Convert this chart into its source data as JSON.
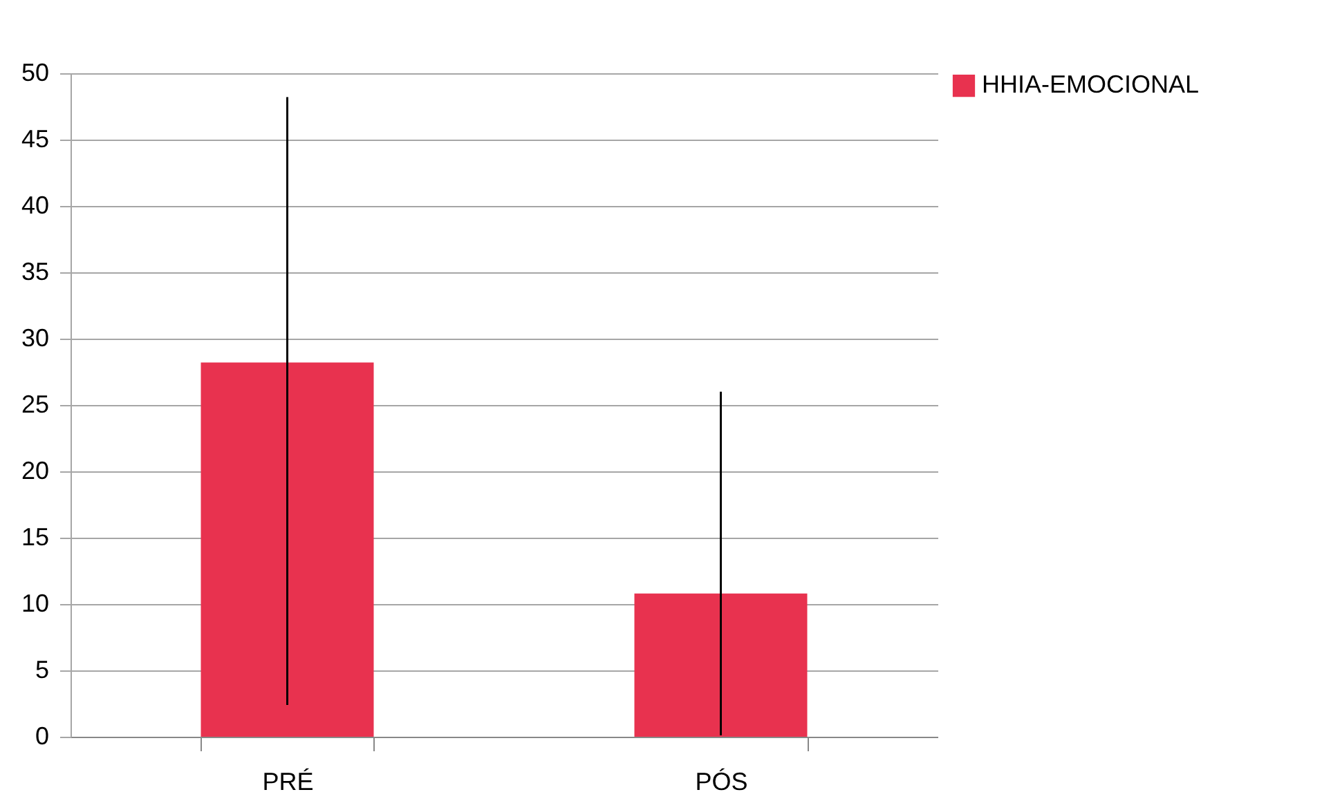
{
  "chart_data": {
    "type": "bar",
    "categories": [
      "PRÉ",
      "PÓS"
    ],
    "series": [
      {
        "name": "HHIA-EMOCIONAL",
        "color": "#e8324f",
        "values": [
          28.2,
          10.8
        ],
        "errors": [
          [
            2.4,
            48.2
          ],
          [
            0.1,
            26.0
          ]
        ]
      }
    ],
    "ylim": [
      0,
      50
    ],
    "yticks": [
      0,
      5,
      10,
      15,
      20,
      25,
      30,
      35,
      40,
      45,
      50
    ],
    "grid": "y",
    "legend": "right"
  }
}
